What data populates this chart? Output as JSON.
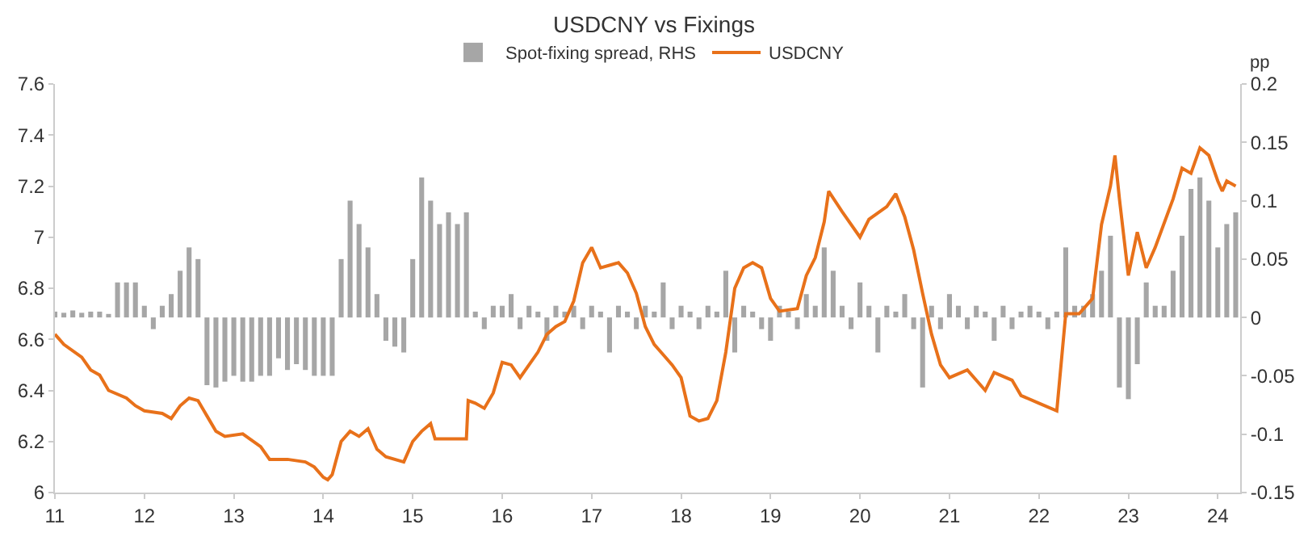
{
  "chart_data": {
    "type": "line",
    "title": "USDCNY vs Fixings",
    "y2label": "pp",
    "legend": "top",
    "grid": false,
    "xlim": [
      11,
      24.25
    ],
    "xticks": [
      11,
      12,
      13,
      14,
      15,
      16,
      17,
      18,
      19,
      20,
      21,
      22,
      23,
      24
    ],
    "ylim": [
      6,
      7.6
    ],
    "yticks": [
      6,
      6.2,
      6.4,
      6.6,
      6.8,
      7,
      7.2,
      7.4,
      7.6
    ],
    "y2lim": [
      -0.15,
      0.2
    ],
    "y2ticks": [
      -0.15,
      -0.1,
      -0.05,
      0,
      0.05,
      0.1,
      0.15,
      0.2
    ],
    "series": [
      {
        "name": "Spot-fixing spread, RHS",
        "type": "bar",
        "axis": "y2",
        "color": "#a6a6a6",
        "x": [
          11.0,
          11.1,
          11.2,
          11.3,
          11.4,
          11.5,
          11.6,
          11.7,
          11.8,
          11.9,
          12.0,
          12.1,
          12.2,
          12.3,
          12.4,
          12.5,
          12.6,
          12.7,
          12.8,
          12.9,
          13.0,
          13.1,
          13.2,
          13.3,
          13.4,
          13.5,
          13.6,
          13.7,
          13.8,
          13.9,
          14.0,
          14.1,
          14.2,
          14.3,
          14.4,
          14.5,
          14.6,
          14.7,
          14.8,
          14.9,
          15.0,
          15.1,
          15.2,
          15.3,
          15.4,
          15.5,
          15.6,
          15.7,
          15.8,
          15.9,
          16.0,
          16.1,
          16.2,
          16.3,
          16.4,
          16.5,
          16.6,
          16.7,
          16.8,
          16.9,
          17.0,
          17.1,
          17.2,
          17.3,
          17.4,
          17.5,
          17.6,
          17.7,
          17.8,
          17.9,
          18.0,
          18.1,
          18.2,
          18.3,
          18.4,
          18.5,
          18.6,
          18.7,
          18.8,
          18.9,
          19.0,
          19.1,
          19.2,
          19.3,
          19.4,
          19.5,
          19.6,
          19.7,
          19.8,
          19.9,
          20.0,
          20.1,
          20.2,
          20.3,
          20.4,
          20.5,
          20.6,
          20.7,
          20.8,
          20.9,
          21.0,
          21.1,
          21.2,
          21.3,
          21.4,
          21.5,
          21.6,
          21.7,
          21.8,
          21.9,
          22.0,
          22.1,
          22.2,
          22.3,
          22.4,
          22.5,
          22.6,
          22.7,
          22.8,
          22.9,
          23.0,
          23.1,
          23.2,
          23.3,
          23.4,
          23.5,
          23.6,
          23.7,
          23.8,
          23.9,
          24.0,
          24.1,
          24.2
        ],
        "values": [
          0.005,
          0.004,
          0.006,
          0.004,
          0.005,
          0.005,
          0.003,
          0.03,
          0.03,
          0.03,
          0.01,
          -0.01,
          0.01,
          0.02,
          0.04,
          0.06,
          0.05,
          -0.058,
          -0.06,
          -0.055,
          -0.05,
          -0.055,
          -0.055,
          -0.05,
          -0.05,
          -0.035,
          -0.045,
          -0.04,
          -0.045,
          -0.05,
          -0.05,
          -0.05,
          0.05,
          0.1,
          0.08,
          0.06,
          0.02,
          -0.02,
          -0.025,
          -0.03,
          0.05,
          0.12,
          0.1,
          0.08,
          0.09,
          0.08,
          0.09,
          0.005,
          -0.01,
          0.01,
          0.01,
          0.02,
          -0.01,
          0.01,
          0.005,
          -0.02,
          0.01,
          0.005,
          0.01,
          -0.01,
          0.01,
          0.005,
          -0.03,
          0.01,
          0.005,
          -0.01,
          0.01,
          0.005,
          0.03,
          -0.01,
          0.01,
          0.005,
          -0.01,
          0.01,
          0.005,
          0.04,
          -0.03,
          0.01,
          0.005,
          -0.01,
          -0.02,
          0.01,
          0.005,
          -0.01,
          0.02,
          0.01,
          0.06,
          0.04,
          0.01,
          -0.01,
          0.03,
          0.01,
          -0.03,
          0.01,
          0.005,
          0.02,
          -0.01,
          -0.06,
          0.01,
          -0.01,
          0.02,
          0.01,
          -0.01,
          0.01,
          0.005,
          -0.02,
          0.01,
          -0.01,
          0.005,
          0.01,
          0.005,
          -0.01,
          0.005,
          0.06,
          0.01,
          0.01,
          0.02,
          0.04,
          0.07,
          -0.06,
          -0.07,
          -0.04,
          0.03,
          0.01,
          0.01,
          0.04,
          0.07,
          0.11,
          0.12,
          0.1,
          0.06,
          0.08,
          0.09
        ]
      },
      {
        "name": "USDCNY",
        "color": "#e8711a",
        "x": [
          11.0,
          11.1,
          11.3,
          11.4,
          11.5,
          11.6,
          11.8,
          11.9,
          12.0,
          12.2,
          12.3,
          12.4,
          12.5,
          12.6,
          12.7,
          12.8,
          12.9,
          13.1,
          13.3,
          13.4,
          13.6,
          13.8,
          13.9,
          14.0,
          14.05,
          14.1,
          14.2,
          14.3,
          14.4,
          14.5,
          14.6,
          14.7,
          14.9,
          15.0,
          15.1,
          15.2,
          15.25,
          15.4,
          15.6,
          15.62,
          15.7,
          15.8,
          15.9,
          16.0,
          16.1,
          16.2,
          16.3,
          16.4,
          16.5,
          16.6,
          16.7,
          16.8,
          16.9,
          17.0,
          17.1,
          17.2,
          17.3,
          17.4,
          17.5,
          17.6,
          17.7,
          17.8,
          17.9,
          18.0,
          18.1,
          18.2,
          18.3,
          18.4,
          18.5,
          18.6,
          18.7,
          18.8,
          18.9,
          19.0,
          19.1,
          19.3,
          19.4,
          19.5,
          19.6,
          19.65,
          19.8,
          20.0,
          20.1,
          20.3,
          20.4,
          20.5,
          20.6,
          20.7,
          20.8,
          20.9,
          21.0,
          21.2,
          21.4,
          21.5,
          21.7,
          21.8,
          22.0,
          22.2,
          22.3,
          22.45,
          22.6,
          22.7,
          22.8,
          22.85,
          22.9,
          23.0,
          23.1,
          23.2,
          23.3,
          23.5,
          23.6,
          23.7,
          23.8,
          23.9,
          24.0,
          24.05,
          24.1,
          24.2
        ],
        "values": [
          6.62,
          6.58,
          6.53,
          6.48,
          6.46,
          6.4,
          6.37,
          6.34,
          6.32,
          6.31,
          6.29,
          6.34,
          6.37,
          6.36,
          6.3,
          6.24,
          6.22,
          6.23,
          6.18,
          6.13,
          6.13,
          6.12,
          6.1,
          6.06,
          6.05,
          6.07,
          6.2,
          6.24,
          6.22,
          6.25,
          6.17,
          6.14,
          6.12,
          6.2,
          6.24,
          6.27,
          6.21,
          6.21,
          6.21,
          6.36,
          6.35,
          6.33,
          6.39,
          6.51,
          6.5,
          6.45,
          6.5,
          6.55,
          6.62,
          6.65,
          6.67,
          6.75,
          6.9,
          6.96,
          6.88,
          6.89,
          6.9,
          6.86,
          6.78,
          6.65,
          6.58,
          6.54,
          6.5,
          6.45,
          6.3,
          6.28,
          6.29,
          6.36,
          6.55,
          6.8,
          6.88,
          6.9,
          6.88,
          6.76,
          6.71,
          6.72,
          6.85,
          6.92,
          7.06,
          7.18,
          7.1,
          7.0,
          7.07,
          7.12,
          7.17,
          7.08,
          6.95,
          6.78,
          6.62,
          6.5,
          6.45,
          6.48,
          6.4,
          6.47,
          6.44,
          6.38,
          6.35,
          6.32,
          6.7,
          6.7,
          6.76,
          7.05,
          7.2,
          7.32,
          7.15,
          6.85,
          7.02,
          6.88,
          6.96,
          7.15,
          7.27,
          7.25,
          7.35,
          7.32,
          7.22,
          7.18,
          7.22,
          7.2
        ]
      }
    ]
  }
}
